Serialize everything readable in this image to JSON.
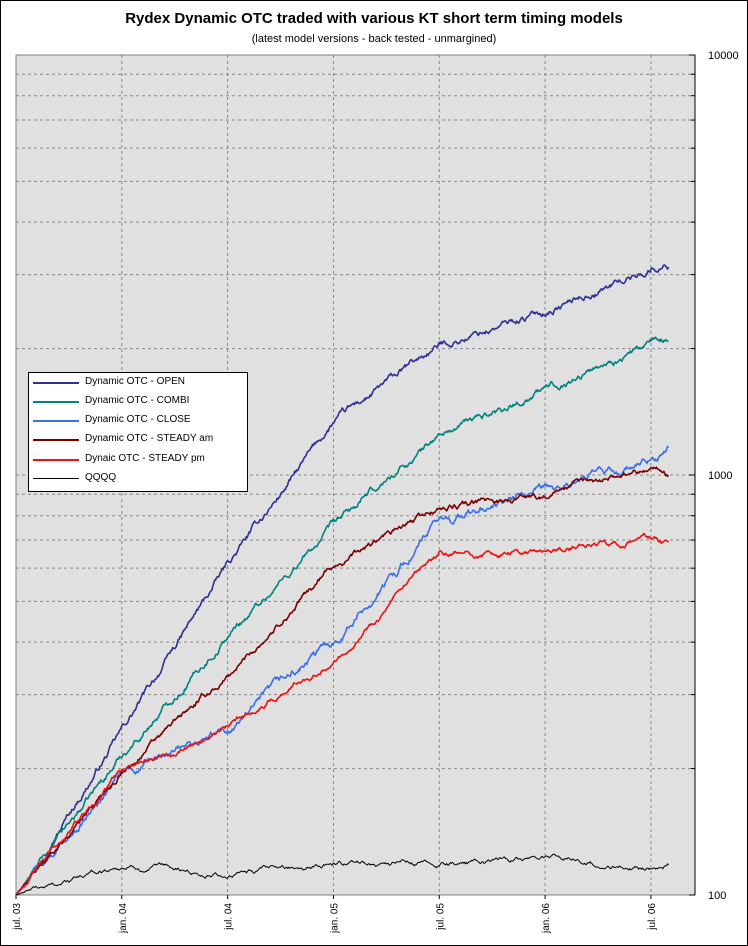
{
  "chart_data": {
    "type": "line",
    "title": "Rydex Dynamic OTC traded with various KT short term timing models",
    "subtitle": "(latest model versions - back tested - unmargined)",
    "x_tick_labels": [
      "jul. 03",
      "jan. 04",
      "jul. 04",
      "jan. 05",
      "jul. 05",
      "jan. 06",
      "jul. 06"
    ],
    "x": [
      "2003-07",
      "2004-01",
      "2004-07",
      "2005-01",
      "2005-07",
      "2006-01",
      "2006-07",
      "2006-08"
    ],
    "y_scale": "log",
    "ylim": [
      100,
      10000
    ],
    "y_tick_labels": [
      "100",
      "1000",
      "10000"
    ],
    "grid": true,
    "legend_position": "left",
    "series": [
      {
        "name": "Dynamic OTC - OPEN",
        "color": "#2e3192",
        "values": [
          100,
          245,
          610,
          1330,
          2030,
          2450,
          3100,
          3150
        ]
      },
      {
        "name": "Dynamic OTC - COMBI",
        "color": "#00827f",
        "values": [
          100,
          215,
          415,
          750,
          1240,
          1600,
          2050,
          2100
        ]
      },
      {
        "name": "Dynamic OTC - CLOSE",
        "color": "#3a6fe8",
        "values": [
          100,
          192,
          245,
          400,
          770,
          910,
          1060,
          1150
        ]
      },
      {
        "name": "Dynamic OTC - STEADY am",
        "color": "#7a0000",
        "values": [
          100,
          198,
          330,
          610,
          830,
          900,
          1050,
          1000
        ]
      },
      {
        "name": "Dynaic OTC - STEADY pm",
        "color": "#ee1111",
        "values": [
          100,
          200,
          250,
          365,
          640,
          655,
          710,
          675
        ]
      },
      {
        "name": "QQQQ",
        "color": "#000000",
        "values": [
          100,
          117,
          111,
          120,
          118,
          123,
          115,
          118
        ]
      }
    ]
  }
}
